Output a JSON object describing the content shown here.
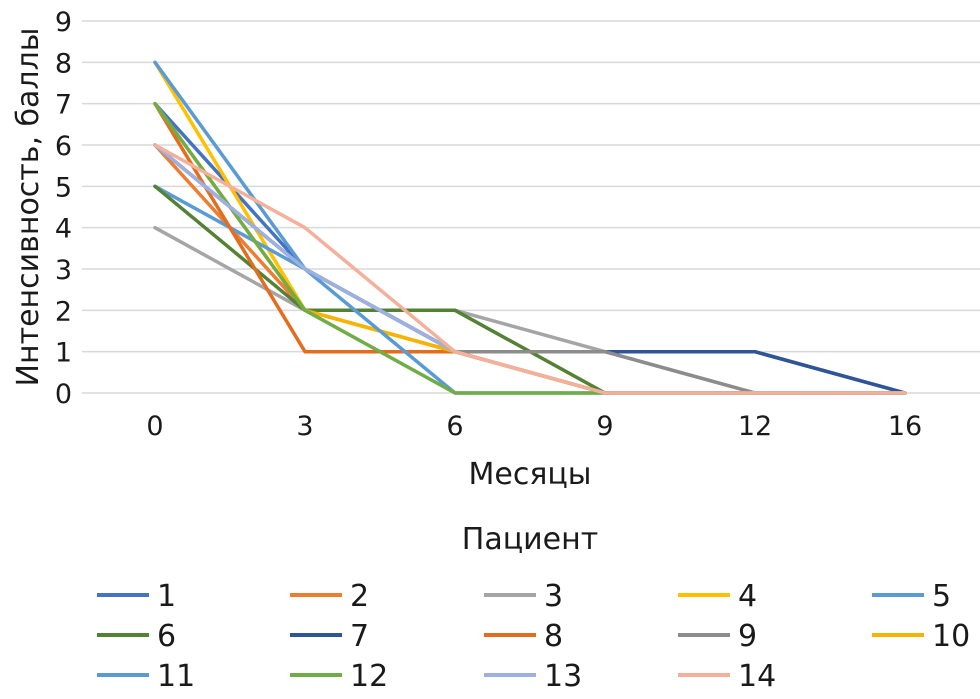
{
  "chart_data": {
    "type": "line",
    "xlabel": "Месяцы",
    "ylabel": "Интенсивность, баллы",
    "categories": [
      "0",
      "3",
      "6",
      "9",
      "12",
      "16"
    ],
    "yticks": [
      "0",
      "1",
      "2",
      "3",
      "4",
      "5",
      "6",
      "7",
      "8",
      "9"
    ],
    "ylim": [
      0,
      9
    ],
    "grid": "horizontal",
    "legend": {
      "title": "Пациент",
      "position": "bottom"
    },
    "series": [
      {
        "name": "1",
        "color": "#4472C4",
        "values": [
          7,
          3,
          1,
          1,
          1,
          0
        ]
      },
      {
        "name": "2",
        "color": "#ED7D31",
        "values": [
          6,
          2,
          1,
          0,
          0,
          0
        ]
      },
      {
        "name": "3",
        "color": "#A5A5A5",
        "values": [
          4,
          2,
          2,
          1,
          0,
          0
        ]
      },
      {
        "name": "4",
        "color": "#FFC000",
        "values": [
          8,
          2,
          1,
          0,
          0,
          0
        ]
      },
      {
        "name": "5",
        "color": "#5B9BD5",
        "values": [
          5,
          3,
          1,
          0,
          0,
          0
        ]
      },
      {
        "name": "6",
        "color": "#548235",
        "values": [
          5,
          2,
          2,
          0,
          0,
          0
        ]
      },
      {
        "name": "7",
        "color": "#2F5597",
        "values": [
          6,
          3,
          1,
          1,
          1,
          0
        ]
      },
      {
        "name": "8",
        "color": "#E46C1F",
        "values": [
          7,
          1,
          1,
          0,
          0,
          0
        ]
      },
      {
        "name": "9",
        "color": "#8C8C8C",
        "values": [
          6,
          3,
          1,
          1,
          0,
          0
        ]
      },
      {
        "name": "10",
        "color": "#F4B400",
        "values": [
          7,
          2,
          1,
          0,
          0,
          0
        ]
      },
      {
        "name": "11",
        "color": "#5B9BD5",
        "values": [
          8,
          3,
          0,
          0,
          0,
          0
        ]
      },
      {
        "name": "12",
        "color": "#70AD47",
        "values": [
          7,
          2,
          0,
          0,
          0,
          0
        ]
      },
      {
        "name": "13",
        "color": "#9DB0E0",
        "values": [
          6,
          3,
          1,
          0,
          0,
          0
        ]
      },
      {
        "name": "14",
        "color": "#F4B09A",
        "values": [
          6,
          4,
          1,
          0,
          0,
          0
        ]
      }
    ]
  }
}
